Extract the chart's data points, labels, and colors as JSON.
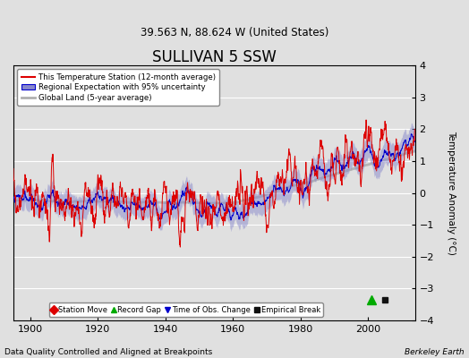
{
  "title": "SULLIVAN 5 SSW",
  "subtitle": "39.563 N, 88.624 W (United States)",
  "xlabel_note": "Data Quality Controlled and Aligned at Breakpoints",
  "ylabel": "Temperature Anomaly (°C)",
  "credit": "Berkeley Earth",
  "xlim": [
    1895,
    2014
  ],
  "ylim": [
    -4,
    4
  ],
  "yticks": [
    -4,
    -3,
    -2,
    -1,
    0,
    1,
    2,
    3,
    4
  ],
  "xticks": [
    1900,
    1920,
    1940,
    1960,
    1980,
    2000
  ],
  "year_start": 1895,
  "year_end": 2013,
  "bg_color": "#e0e0e0",
  "plot_bg_color": "#e0e0e0",
  "station_color": "#dd0000",
  "regional_color": "#0000cc",
  "regional_fill_color": "#8888cc",
  "global_color": "#b0b0b0",
  "legend_station": "This Temperature Station (12-month average)",
  "legend_regional": "Regional Expectation with 95% uncertainty",
  "legend_global": "Global Land (5-year average)",
  "marker_labels": [
    "Station Move",
    "Record Gap",
    "Time of Obs. Change",
    "Empirical Break"
  ],
  "marker_colors": [
    "#dd0000",
    "#00aa00",
    "#0000cc",
    "#111111"
  ],
  "marker_shapes": [
    "D",
    "^",
    "v",
    "s"
  ],
  "record_gap_x": 2001,
  "record_gap_y": -3.35,
  "empirical_break_x": 2005,
  "empirical_break_y": -3.35,
  "seed": 42
}
